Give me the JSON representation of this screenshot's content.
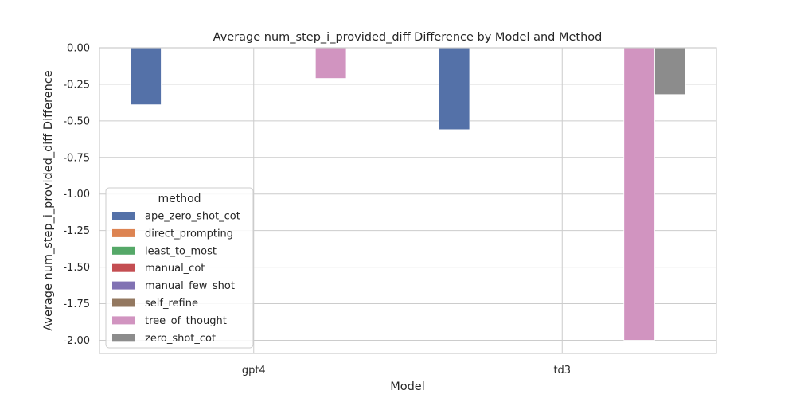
{
  "chart_data": {
    "type": "bar",
    "title": "Average num_step_i_provided_diff Difference by Model and Method",
    "xlabel": "Model",
    "ylabel": "Average num_step_i_provided_diff Difference",
    "categories": [
      "gpt4",
      "td3"
    ],
    "ylim": [
      -2.09,
      0.0
    ],
    "yticks": [
      0.0,
      -0.25,
      -0.5,
      -0.75,
      -1.0,
      -1.25,
      -1.5,
      -1.75,
      -2.0
    ],
    "ytick_labels": [
      "0.00",
      "-0.25",
      "-0.50",
      "-0.75",
      "-1.00",
      "-1.25",
      "-1.50",
      "-1.75",
      "-2.00"
    ],
    "grid": true,
    "legend": {
      "title": "method",
      "position": "lower-left"
    },
    "series": [
      {
        "name": "ape_zero_shot_cot",
        "color": "#5471a8",
        "values": [
          -0.39,
          -0.56
        ]
      },
      {
        "name": "direct_prompting",
        "color": "#dd8452",
        "values": [
          null,
          null
        ]
      },
      {
        "name": "least_to_most",
        "color": "#55a868",
        "values": [
          null,
          null
        ]
      },
      {
        "name": "manual_cot",
        "color": "#c44e52",
        "values": [
          null,
          null
        ]
      },
      {
        "name": "manual_few_shot",
        "color": "#8172b3",
        "values": [
          null,
          null
        ]
      },
      {
        "name": "self_refine",
        "color": "#937860",
        "values": [
          null,
          null
        ]
      },
      {
        "name": "tree_of_thought",
        "color": "#d194c0",
        "values": [
          -0.21,
          -2.0
        ]
      },
      {
        "name": "zero_shot_cot",
        "color": "#8c8c8c",
        "values": [
          null,
          -0.32
        ]
      }
    ]
  }
}
